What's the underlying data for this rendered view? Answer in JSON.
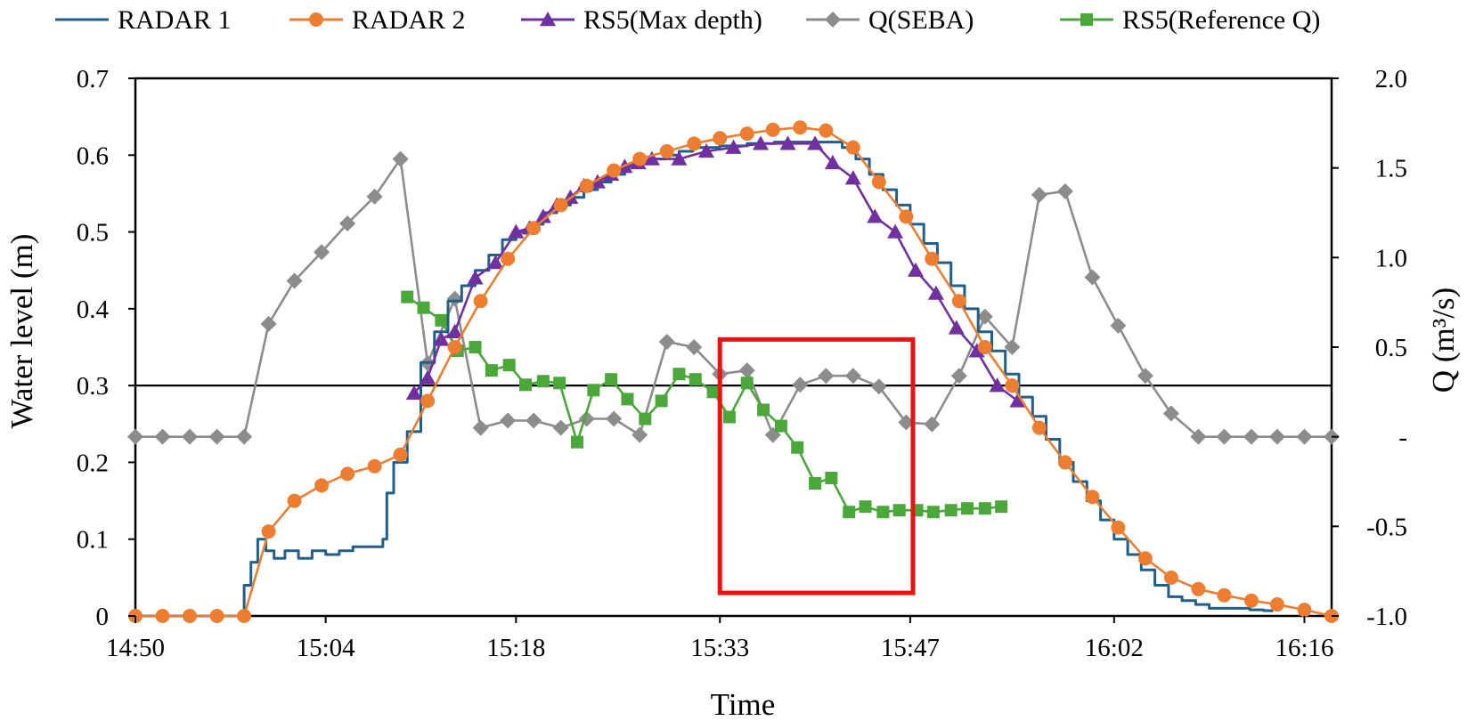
{
  "chart_data": {
    "type": "line",
    "title": "",
    "xlabel": "Time",
    "ylabel": "Water level (m)",
    "y2label": "Q (m³/s)",
    "x_tick_labels": [
      "14:50",
      "15:04",
      "15:18",
      "15:33",
      "15:47",
      "16:02",
      "16:16"
    ],
    "x_tick_minutes": [
      0,
      14,
      28,
      43,
      57,
      72,
      86
    ],
    "xlim_minutes": [
      0,
      88
    ],
    "ylim": [
      0,
      0.7
    ],
    "y_tick_labels": [
      "0",
      "0.1",
      "0.2",
      "0.3",
      "0.4",
      "0.5",
      "0.6",
      "0.7"
    ],
    "y2lim": [
      -1.0,
      2.0
    ],
    "y2_tick_labels": [
      "-1.0",
      "-0.5",
      "-",
      "0.5",
      "1.0",
      "1.5",
      "2.0"
    ],
    "reference_line_y": 0.3,
    "legend_position": "top",
    "highlight_box": {
      "x_minutes": [
        43.0,
        57.2
      ],
      "y": [
        0.03,
        0.36
      ],
      "color": "#ee1111"
    },
    "series": [
      {
        "name": "RADAR 1",
        "axis": "left",
        "color": "#1f5f8b",
        "marker": "none",
        "step": true,
        "points": [
          [
            0,
            0
          ],
          [
            7.4,
            0
          ],
          [
            8,
            0.04
          ],
          [
            8.5,
            0.07
          ],
          [
            9,
            0.1
          ],
          [
            9.6,
            0.085
          ],
          [
            10.2,
            0.075
          ],
          [
            11,
            0.085
          ],
          [
            12,
            0.075
          ],
          [
            13,
            0.085
          ],
          [
            14,
            0.08
          ],
          [
            15,
            0.085
          ],
          [
            16,
            0.09
          ],
          [
            17,
            0.09
          ],
          [
            18.2,
            0.1
          ],
          [
            18.5,
            0.16
          ],
          [
            19,
            0.2
          ],
          [
            20,
            0.24
          ],
          [
            21,
            0.33
          ],
          [
            22,
            0.37
          ],
          [
            23,
            0.41
          ],
          [
            24,
            0.43
          ],
          [
            25,
            0.45
          ],
          [
            26,
            0.47
          ],
          [
            27,
            0.49
          ],
          [
            28,
            0.5
          ],
          [
            29,
            0.51
          ],
          [
            30,
            0.525
          ],
          [
            31,
            0.535
          ],
          [
            32,
            0.545
          ],
          [
            33,
            0.555
          ],
          [
            34,
            0.565
          ],
          [
            35,
            0.575
          ],
          [
            36,
            0.585
          ],
          [
            37,
            0.59
          ],
          [
            38,
            0.595
          ],
          [
            39,
            0.6
          ],
          [
            40,
            0.605
          ],
          [
            41,
            0.61
          ],
          [
            42,
            0.61
          ],
          [
            43,
            0.612
          ],
          [
            45,
            0.615
          ],
          [
            47,
            0.617
          ],
          [
            50,
            0.617
          ],
          [
            51.2,
            0.617
          ],
          [
            52,
            0.61
          ],
          [
            53,
            0.595
          ],
          [
            54,
            0.575
          ],
          [
            55,
            0.555
          ],
          [
            56,
            0.535
          ],
          [
            57,
            0.51
          ],
          [
            58,
            0.485
          ],
          [
            59,
            0.46
          ],
          [
            60,
            0.43
          ],
          [
            61,
            0.4
          ],
          [
            62,
            0.37
          ],
          [
            63,
            0.345
          ],
          [
            64,
            0.315
          ],
          [
            65,
            0.285
          ],
          [
            66,
            0.26
          ],
          [
            67,
            0.23
          ],
          [
            68,
            0.2
          ],
          [
            69,
            0.175
          ],
          [
            70,
            0.15
          ],
          [
            71,
            0.125
          ],
          [
            72,
            0.1
          ],
          [
            73,
            0.08
          ],
          [
            74,
            0.06
          ],
          [
            75,
            0.04
          ],
          [
            76,
            0.025
          ],
          [
            77,
            0.02
          ],
          [
            78,
            0.015
          ],
          [
            79,
            0.01
          ],
          [
            80,
            0.01
          ],
          [
            81,
            0.01
          ],
          [
            82,
            0.008
          ],
          [
            83,
            0.007
          ],
          [
            83.6,
            0.005
          ]
        ]
      },
      {
        "name": "RADAR 2",
        "axis": "left",
        "color": "#ed7d31",
        "marker": "circle",
        "points": [
          [
            0,
            0
          ],
          [
            2,
            0
          ],
          [
            4,
            0
          ],
          [
            6,
            0
          ],
          [
            8,
            0
          ],
          [
            9.8,
            0.11
          ],
          [
            11.7,
            0.15
          ],
          [
            13.7,
            0.17
          ],
          [
            15.6,
            0.185
          ],
          [
            17.6,
            0.195
          ],
          [
            19.5,
            0.21
          ],
          [
            21.5,
            0.28
          ],
          [
            23.5,
            0.35
          ],
          [
            25.4,
            0.41
          ],
          [
            27.4,
            0.465
          ],
          [
            29.3,
            0.505
          ],
          [
            31.3,
            0.535
          ],
          [
            33.2,
            0.56
          ],
          [
            35.2,
            0.58
          ],
          [
            37.1,
            0.595
          ],
          [
            39.1,
            0.605
          ],
          [
            41.1,
            0.615
          ],
          [
            43,
            0.622
          ],
          [
            45,
            0.628
          ],
          [
            46.9,
            0.633
          ],
          [
            48.9,
            0.636
          ],
          [
            50.8,
            0.632
          ],
          [
            52.8,
            0.61
          ],
          [
            54.7,
            0.565
          ],
          [
            56.7,
            0.52
          ],
          [
            58.6,
            0.465
          ],
          [
            60.6,
            0.41
          ],
          [
            62.5,
            0.35
          ],
          [
            64.5,
            0.3
          ],
          [
            66.5,
            0.245
          ],
          [
            68.4,
            0.2
          ],
          [
            70.4,
            0.155
          ],
          [
            72.3,
            0.115
          ],
          [
            74.3,
            0.075
          ],
          [
            76.2,
            0.05
          ],
          [
            78.2,
            0.035
          ],
          [
            80.1,
            0.027
          ],
          [
            82.1,
            0.02
          ],
          [
            84,
            0.015
          ],
          [
            86,
            0.008
          ],
          [
            88,
            0
          ]
        ]
      },
      {
        "name": "RS5(Max depth)",
        "axis": "left",
        "color": "#7030a0",
        "marker": "triangle",
        "points": [
          [
            20.5,
            0.29
          ],
          [
            21.5,
            0.31
          ],
          [
            22.5,
            0.36
          ],
          [
            23.5,
            0.37
          ],
          [
            25,
            0.44
          ],
          [
            26.5,
            0.46
          ],
          [
            28,
            0.5
          ],
          [
            29,
            0.505
          ],
          [
            30,
            0.52
          ],
          [
            31,
            0.535
          ],
          [
            32,
            0.545
          ],
          [
            33,
            0.56
          ],
          [
            34,
            0.565
          ],
          [
            35,
            0.575
          ],
          [
            36,
            0.585
          ],
          [
            37,
            0.59
          ],
          [
            38,
            0.595
          ],
          [
            40,
            0.595
          ],
          [
            42,
            0.605
          ],
          [
            44,
            0.61
          ],
          [
            46,
            0.615
          ],
          [
            48,
            0.615
          ],
          [
            50,
            0.615
          ],
          [
            51.3,
            0.59
          ],
          [
            52.8,
            0.57
          ],
          [
            54.4,
            0.52
          ],
          [
            55.9,
            0.5
          ],
          [
            57.4,
            0.45
          ],
          [
            58.9,
            0.42
          ],
          [
            60.4,
            0.375
          ],
          [
            61.9,
            0.345
          ],
          [
            63.4,
            0.3
          ],
          [
            64.9,
            0.28
          ]
        ]
      },
      {
        "name": "Q(SEBA)",
        "axis": "right",
        "color": "#8c8c8c",
        "marker": "diamond",
        "points": [
          [
            0,
            0
          ],
          [
            2,
            0
          ],
          [
            4,
            0
          ],
          [
            6,
            0
          ],
          [
            8,
            0
          ],
          [
            9.8,
            0.63
          ],
          [
            11.7,
            0.87
          ],
          [
            13.7,
            1.03
          ],
          [
            15.6,
            1.19
          ],
          [
            17.6,
            1.34
          ],
          [
            19.5,
            1.55
          ],
          [
            21.5,
            0.41
          ],
          [
            23.5,
            0.77
          ],
          [
            25.4,
            0.05
          ],
          [
            27.4,
            0.09
          ],
          [
            29.3,
            0.09
          ],
          [
            31.3,
            0.05
          ],
          [
            33.2,
            0.1
          ],
          [
            35.2,
            0.1
          ],
          [
            37.1,
            0.01
          ],
          [
            39.1,
            0.53
          ],
          [
            41.1,
            0.5
          ],
          [
            43,
            0.35
          ],
          [
            45,
            0.37
          ],
          [
            46.9,
            0.01
          ],
          [
            48.9,
            0.29
          ],
          [
            50.8,
            0.34
          ],
          [
            52.8,
            0.34
          ],
          [
            54.7,
            0.28
          ],
          [
            56.7,
            0.08
          ],
          [
            58.6,
            0.07
          ],
          [
            60.6,
            0.34
          ],
          [
            62.5,
            0.67
          ],
          [
            64.5,
            0.5
          ],
          [
            66.5,
            1.35
          ],
          [
            68.4,
            1.37
          ],
          [
            70.4,
            0.89
          ],
          [
            72.3,
            0.62
          ],
          [
            74.3,
            0.34
          ],
          [
            76.2,
            0.13
          ],
          [
            78.2,
            0
          ],
          [
            80.1,
            0
          ],
          [
            82.1,
            0
          ],
          [
            84,
            0
          ],
          [
            86,
            0
          ],
          [
            88,
            0
          ]
        ]
      },
      {
        "name": "RS5(Reference Q)",
        "axis": "right",
        "color": "#4aa73a",
        "marker": "square",
        "points": [
          [
            20,
            0.78
          ],
          [
            21.2,
            0.72
          ],
          [
            22.5,
            0.65
          ],
          [
            23.7,
            0.48
          ],
          [
            25,
            0.5
          ],
          [
            26.2,
            0.37
          ],
          [
            27.5,
            0.4
          ],
          [
            28.7,
            0.29
          ],
          [
            30,
            0.31
          ],
          [
            31.2,
            0.3
          ],
          [
            32.5,
            -0.03
          ],
          [
            33.7,
            0.26
          ],
          [
            35,
            0.32
          ],
          [
            36.2,
            0.21
          ],
          [
            37.5,
            0.1
          ],
          [
            38.7,
            0.2
          ],
          [
            40,
            0.35
          ],
          [
            41.2,
            0.32
          ],
          [
            42.5,
            0.25
          ],
          [
            43.7,
            0.11
          ],
          [
            45,
            0.3
          ],
          [
            46.2,
            0.15
          ],
          [
            47.5,
            0.06
          ],
          [
            48.7,
            -0.06
          ],
          [
            50,
            -0.26
          ],
          [
            51.2,
            -0.23
          ],
          [
            52.5,
            -0.42
          ],
          [
            53.7,
            -0.39
          ],
          [
            55,
            -0.42
          ],
          [
            56.2,
            -0.41
          ],
          [
            57.5,
            -0.41
          ],
          [
            58.7,
            -0.42
          ],
          [
            60,
            -0.41
          ],
          [
            61.2,
            -0.4
          ],
          [
            62.5,
            -0.4
          ],
          [
            63.7,
            -0.39
          ]
        ]
      }
    ]
  }
}
